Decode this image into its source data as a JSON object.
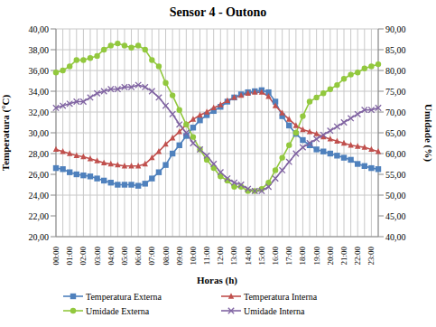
{
  "chart_data": {
    "type": "line",
    "title": "Sensor 4 - Outono",
    "x_label": "Horas (h)",
    "y_label": "Temperatura (°C)",
    "y2_label": "Umidade (%)",
    "grid": true,
    "legend": "bottom",
    "categories": [
      "00:00",
      null,
      "01:00",
      null,
      "02:00",
      null,
      "03:00",
      null,
      "04:00",
      null,
      "05:00",
      null,
      "06:00",
      null,
      "07:00",
      null,
      "08:00",
      null,
      "09:00",
      null,
      "10:00",
      null,
      "11:00",
      null,
      "12:00",
      null,
      "13:00",
      null,
      "14:00",
      null,
      "15:00",
      null,
      "16:00",
      null,
      "17:00",
      null,
      "18:00",
      null,
      "19:00",
      null,
      "20:00",
      null,
      "21:00",
      null,
      "22:00",
      null,
      "23:00",
      null
    ],
    "ylim": [
      20,
      40
    ],
    "yticks": [
      {
        "value": 20,
        "label": "20,00"
      },
      {
        "value": 22,
        "label": "22,00"
      },
      {
        "value": 24,
        "label": "24,00"
      },
      {
        "value": 26,
        "label": "26,00"
      },
      {
        "value": 28,
        "label": "28,00"
      },
      {
        "value": 30,
        "label": "30,00"
      },
      {
        "value": 32,
        "label": "32,00"
      },
      {
        "value": 34,
        "label": "34,00"
      },
      {
        "value": 36,
        "label": "36,00"
      },
      {
        "value": 38,
        "label": "38,00"
      },
      {
        "value": 40,
        "label": "40,00"
      }
    ],
    "y2lim": [
      40,
      90
    ],
    "y2ticks": [
      {
        "value": 40,
        "label": "40,00"
      },
      {
        "value": 45,
        "label": "45,00"
      },
      {
        "value": 50,
        "label": "50,00"
      },
      {
        "value": 55,
        "label": "55,00"
      },
      {
        "value": 60,
        "label": "60,00"
      },
      {
        "value": 65,
        "label": "65,00"
      },
      {
        "value": 70,
        "label": "70,00"
      },
      {
        "value": 75,
        "label": "75,00"
      },
      {
        "value": 80,
        "label": "80,00"
      },
      {
        "value": 85,
        "label": "85,00"
      },
      {
        "value": 90,
        "label": "90,00"
      }
    ],
    "series": [
      {
        "name": "Temperatura Externa",
        "color": "#4F81BD",
        "marker": "square",
        "values": [
          26.6,
          26.5,
          26.2,
          26.0,
          25.9,
          25.8,
          25.6,
          25.4,
          25.2,
          25.0,
          25.0,
          25.0,
          24.9,
          25.1,
          25.6,
          26.2,
          26.9,
          28.0,
          28.8,
          29.7,
          30.5,
          31.2,
          31.7,
          32.1,
          32.5,
          33.0,
          33.4,
          33.7,
          33.9,
          34.0,
          34.1,
          33.9,
          33.0,
          31.6,
          30.7,
          29.9,
          29.3,
          28.8,
          28.4,
          28.2,
          28.0,
          27.8,
          27.6,
          27.4,
          27.0,
          26.8,
          26.6,
          26.5
        ]
      },
      {
        "name": "Temperatura Interna",
        "color": "#C0504D",
        "marker": "triangle",
        "values": [
          28.4,
          28.2,
          28.0,
          27.8,
          27.7,
          27.5,
          27.3,
          27.1,
          27.0,
          26.9,
          26.8,
          26.8,
          26.8,
          27.0,
          27.6,
          28.2,
          28.9,
          29.5,
          30.1,
          30.8,
          31.3,
          31.7,
          32.0,
          32.4,
          32.7,
          33.1,
          33.4,
          33.6,
          33.8,
          33.9,
          33.9,
          33.5,
          32.6,
          31.9,
          31.3,
          30.7,
          30.3,
          30.1,
          29.9,
          29.6,
          29.4,
          29.2,
          29.0,
          28.8,
          28.7,
          28.6,
          28.4,
          28.2
        ]
      },
      {
        "name": "Umidade Externa",
        "color": "#92C83E",
        "marker": "circle",
        "axis": "y2",
        "values": [
          79.5,
          80.0,
          81.0,
          82.5,
          82.5,
          83.0,
          83.5,
          85.0,
          86.0,
          86.5,
          86.0,
          85.5,
          86.0,
          85.0,
          82.5,
          81.0,
          77.0,
          74.0,
          70.5,
          67.0,
          64.0,
          61.0,
          58.5,
          56.5,
          54.5,
          53.5,
          52.0,
          52.0,
          51.0,
          51.0,
          51.5,
          53.0,
          56.0,
          59.0,
          62.0,
          65.0,
          69.0,
          72.5,
          73.5,
          74.5,
          75.5,
          76.5,
          78.0,
          79.0,
          79.5,
          80.5,
          81.0,
          81.5
        ]
      },
      {
        "name": "Umidade Interna",
        "color": "#8064A2",
        "marker": "x",
        "axis": "y2",
        "values": [
          71.0,
          71.5,
          72.0,
          72.5,
          72.5,
          73.5,
          74.5,
          75.0,
          75.5,
          75.5,
          76.0,
          76.0,
          76.5,
          76.0,
          75.0,
          73.5,
          71.5,
          69.5,
          67.0,
          65.0,
          62.5,
          61.0,
          59.5,
          57.5,
          55.5,
          54.0,
          53.0,
          52.5,
          51.5,
          51.0,
          51.0,
          52.0,
          54.0,
          56.0,
          58.0,
          60.0,
          61.5,
          62.5,
          63.5,
          64.5,
          65.5,
          66.5,
          67.5,
          68.5,
          69.5,
          70.5,
          70.5,
          71.0
        ]
      }
    ]
  }
}
